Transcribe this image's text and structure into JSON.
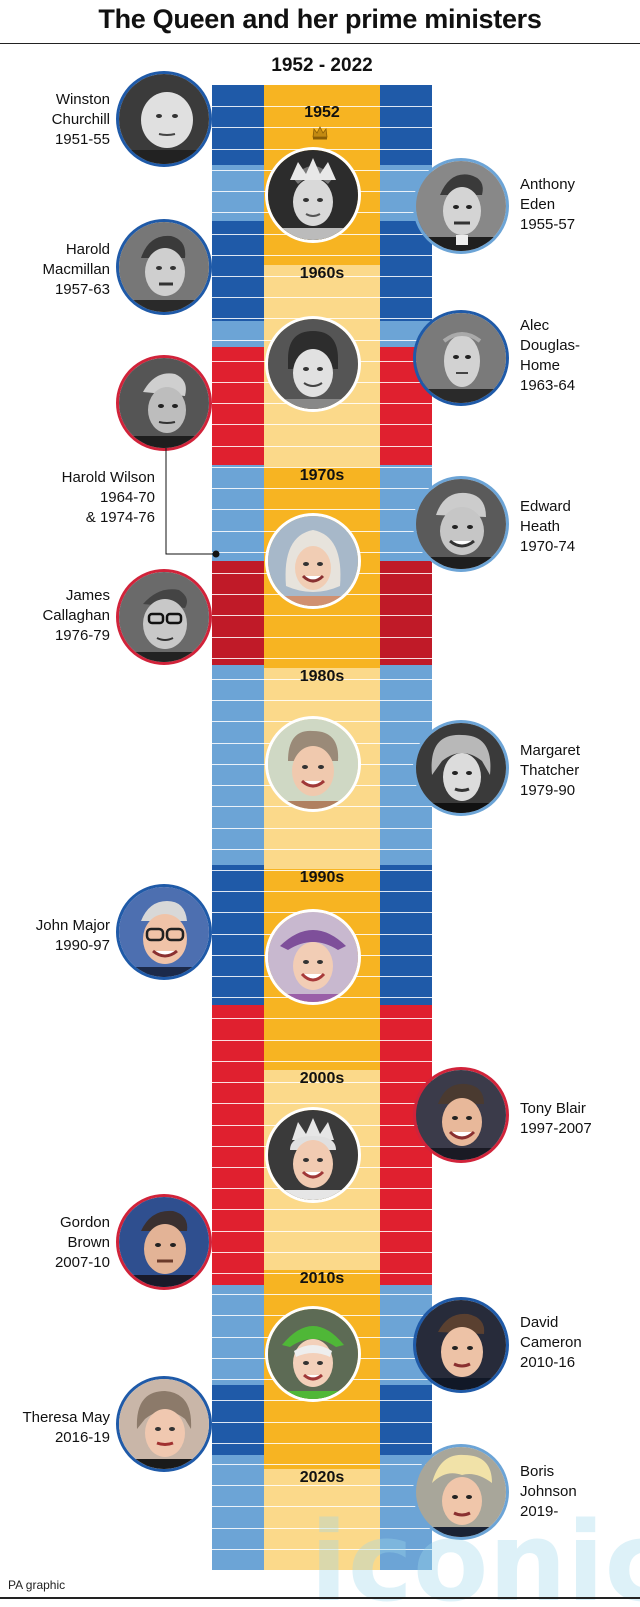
{
  "title": "The Queen and her prime ministers",
  "date_range": "1952 - 2022",
  "credit": "PA graphic",
  "watermark": "iconic",
  "colors": {
    "conservative_dark": "#1f5aa8",
    "conservative_light": "#6ca4d6",
    "labour": "#e0202f",
    "labour_dark": "#c01a28",
    "strip_gold": "#f7b422",
    "strip_pale": "#fbd98a",
    "photo_border_blue": "#1f5aa8",
    "photo_border_light": "#6ca4d6",
    "photo_border_red": "#d1233a"
  },
  "decades": [
    "1952",
    "1960s",
    "1970s",
    "1980s",
    "1990s",
    "2000s",
    "2010s",
    "2020s"
  ],
  "prime_ministers": {
    "left": [
      {
        "lines": [
          "Winston",
          "Churchill",
          "1951-55"
        ],
        "party": "conservative"
      },
      {
        "lines": [
          "Harold",
          "Macmillan",
          "1957-63"
        ],
        "party": "conservative"
      },
      {
        "lines": [
          "Harold Wilson",
          "1964-70",
          "& 1974-76"
        ],
        "party": "labour"
      },
      {
        "lines": [
          "James",
          "Callaghan",
          "1976-79"
        ],
        "party": "labour"
      },
      {
        "lines": [
          "John Major",
          "1990-97"
        ],
        "party": "conservative"
      },
      {
        "lines": [
          "Gordon",
          "Brown",
          "2007-10"
        ],
        "party": "labour"
      },
      {
        "lines": [
          "Theresa May",
          "2016-19"
        ],
        "party": "conservative"
      }
    ],
    "right": [
      {
        "lines": [
          "Anthony",
          "Eden",
          "1955-57"
        ],
        "party": "conservative"
      },
      {
        "lines": [
          "Alec",
          "Douglas-",
          "Home",
          "1963-64"
        ],
        "party": "conservative"
      },
      {
        "lines": [
          "Edward",
          "Heath",
          "1970-74"
        ],
        "party": "conservative"
      },
      {
        "lines": [
          "Margaret",
          "Thatcher",
          "1979-90"
        ],
        "party": "conservative"
      },
      {
        "lines": [
          "Tony Blair",
          "1997-2007"
        ],
        "party": "labour"
      },
      {
        "lines": [
          "David",
          "Cameron",
          "2010-16"
        ],
        "party": "conservative"
      },
      {
        "lines": [
          "Boris",
          "Johnson",
          "2019-"
        ],
        "party": "conservative"
      }
    ]
  },
  "queen_portraits": [
    "queen-1952-portrait",
    "queen-1960s-portrait",
    "queen-1970s-portrait",
    "queen-1980s-portrait",
    "queen-1990s-portrait",
    "queen-2000s-portrait",
    "queen-2010s-portrait"
  ],
  "icons": {
    "crown": "crown-icon",
    "connector": "connector-line"
  }
}
